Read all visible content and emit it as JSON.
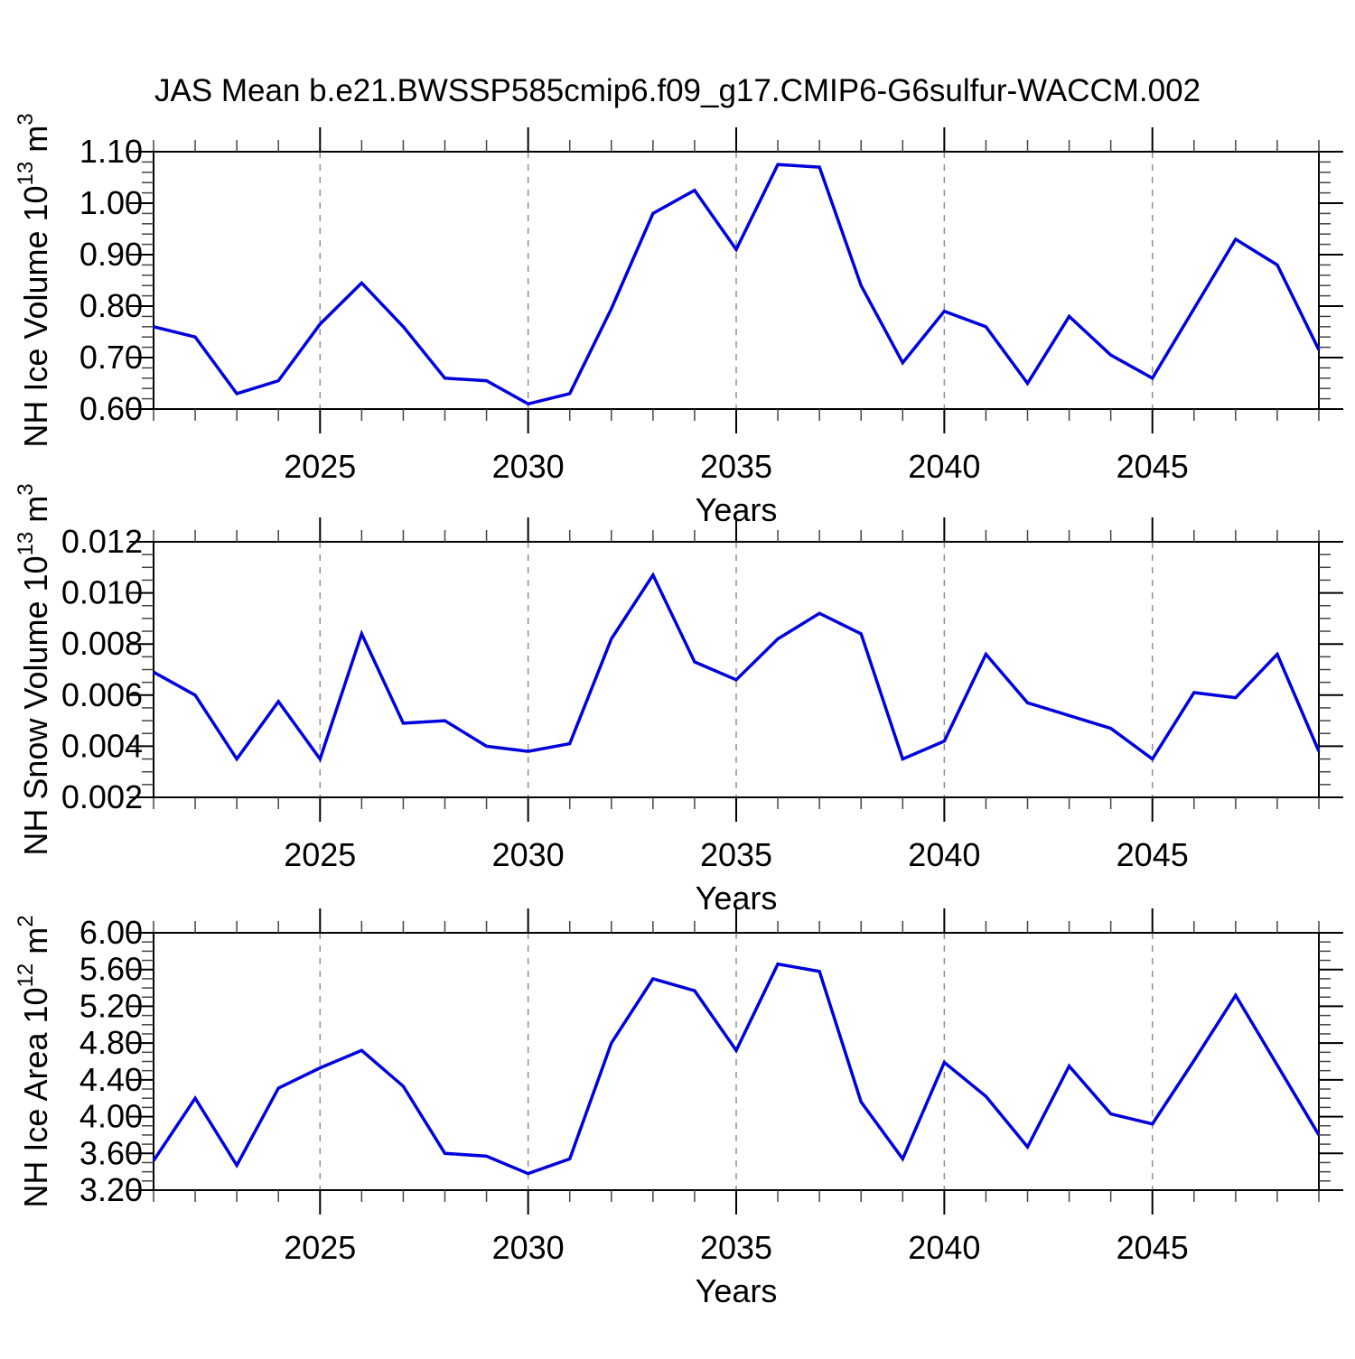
{
  "figure": {
    "title": "JAS Mean b.e21.BWSSP585cmip6.f09_g17.CMIP6-G6sulfur-WACCM.002",
    "background": "#ffffff",
    "line_color": "#0000dd",
    "frame_color": "#000000",
    "grid_color": "#909090",
    "minor_tick_color": "#444444"
  },
  "chart_data": [
    {
      "type": "line",
      "name": "nh-ice-volume",
      "title": "",
      "xlabel": "Years",
      "ylabel_segments": [
        {
          "text": "NH Ice Volume 10",
          "sup": false
        },
        {
          "text": "13",
          "sup": true
        },
        {
          "text": " m",
          "sup": false
        },
        {
          "text": "3",
          "sup": true
        }
      ],
      "x": [
        2021,
        2022,
        2023,
        2024,
        2025,
        2026,
        2027,
        2028,
        2029,
        2030,
        2031,
        2032,
        2033,
        2034,
        2035,
        2036,
        2037,
        2038,
        2039,
        2040,
        2041,
        2042,
        2043,
        2044,
        2045,
        2046,
        2047,
        2048,
        2049
      ],
      "values": [
        0.76,
        0.74,
        0.63,
        0.655,
        0.765,
        0.845,
        0.76,
        0.66,
        0.655,
        0.61,
        0.63,
        0.795,
        0.98,
        1.025,
        0.91,
        1.075,
        1.07,
        0.84,
        0.69,
        0.79,
        0.76,
        0.65,
        0.78,
        0.705,
        0.66,
        0.795,
        0.93,
        0.88,
        0.715
      ],
      "xlim": [
        2021,
        2049
      ],
      "ylim": [
        0.6,
        1.1
      ],
      "yticks": [
        0.6,
        0.7,
        0.8,
        0.9,
        1.0,
        1.1
      ],
      "ytick_labels": [
        "0.60",
        "0.70",
        "0.80",
        "0.90",
        "1.00",
        "1.10"
      ],
      "y_minor_step": 0.02,
      "xticks_major": [
        2025,
        2030,
        2035,
        2040,
        2045
      ],
      "xtick_labels": [
        "2025",
        "2030",
        "2035",
        "2040",
        "2045"
      ],
      "x_minor_step": 1,
      "grid": "vertical-dashed-at-major-xticks",
      "legend": null
    },
    {
      "type": "line",
      "name": "nh-snow-volume",
      "title": "",
      "xlabel": "Years",
      "ylabel_segments": [
        {
          "text": "NH Snow Volume 10",
          "sup": false
        },
        {
          "text": "13",
          "sup": true
        },
        {
          "text": " m",
          "sup": false
        },
        {
          "text": "3",
          "sup": true
        }
      ],
      "x": [
        2021,
        2022,
        2023,
        2024,
        2025,
        2026,
        2027,
        2028,
        2029,
        2030,
        2031,
        2032,
        2033,
        2034,
        2035,
        2036,
        2037,
        2038,
        2039,
        2040,
        2041,
        2042,
        2043,
        2044,
        2045,
        2046,
        2047,
        2048,
        2049
      ],
      "values": [
        0.0069,
        0.006,
        0.0035,
        0.00575,
        0.0035,
        0.0084,
        0.0049,
        0.005,
        0.004,
        0.0038,
        0.0041,
        0.0082,
        0.0107,
        0.0073,
        0.0066,
        0.0082,
        0.0092,
        0.0084,
        0.0035,
        0.0042,
        0.0076,
        0.0057,
        0.0052,
        0.0047,
        0.0035,
        0.0061,
        0.0059,
        0.0076,
        0.0038
      ],
      "xlim": [
        2021,
        2049
      ],
      "ylim": [
        0.002,
        0.012
      ],
      "yticks": [
        0.002,
        0.004,
        0.006,
        0.008,
        0.01,
        0.012
      ],
      "ytick_labels": [
        "0.002",
        "0.004",
        "0.006",
        "0.008",
        "0.010",
        "0.012"
      ],
      "y_minor_step": 0.0005,
      "xticks_major": [
        2025,
        2030,
        2035,
        2040,
        2045
      ],
      "xtick_labels": [
        "2025",
        "2030",
        "2035",
        "2040",
        "2045"
      ],
      "x_minor_step": 1,
      "grid": "vertical-dashed-at-major-xticks",
      "legend": null
    },
    {
      "type": "line",
      "name": "nh-ice-area",
      "title": "",
      "xlabel": "Years",
      "ylabel_segments": [
        {
          "text": "NH Ice Area 10",
          "sup": false
        },
        {
          "text": "12",
          "sup": true
        },
        {
          "text": " m",
          "sup": false
        },
        {
          "text": "2",
          "sup": true
        }
      ],
      "x": [
        2021,
        2022,
        2023,
        2024,
        2025,
        2026,
        2027,
        2028,
        2029,
        2030,
        2031,
        2032,
        2033,
        2034,
        2035,
        2036,
        2037,
        2038,
        2039,
        2040,
        2041,
        2042,
        2043,
        2044,
        2045,
        2046,
        2047,
        2048,
        2049
      ],
      "values": [
        3.52,
        4.2,
        3.47,
        4.31,
        4.53,
        4.72,
        4.33,
        3.6,
        3.57,
        3.38,
        3.54,
        4.8,
        5.5,
        5.37,
        4.72,
        5.66,
        5.58,
        4.16,
        3.54,
        4.59,
        4.22,
        3.67,
        4.55,
        4.03,
        3.92,
        4.61,
        5.32,
        4.56,
        3.8
      ],
      "xlim": [
        2021,
        2049
      ],
      "ylim": [
        3.2,
        6.0
      ],
      "yticks": [
        3.2,
        3.6,
        4.0,
        4.4,
        4.8,
        5.2,
        5.6,
        6.0
      ],
      "ytick_labels": [
        "3.20",
        "3.60",
        "4.00",
        "4.40",
        "4.80",
        "5.20",
        "5.60",
        "6.00"
      ],
      "y_minor_step": 0.1,
      "xticks_major": [
        2025,
        2030,
        2035,
        2040,
        2045
      ],
      "xtick_labels": [
        "2025",
        "2030",
        "2035",
        "2040",
        "2045"
      ],
      "x_minor_step": 1,
      "grid": "vertical-dashed-at-major-xticks",
      "legend": null
    }
  ]
}
